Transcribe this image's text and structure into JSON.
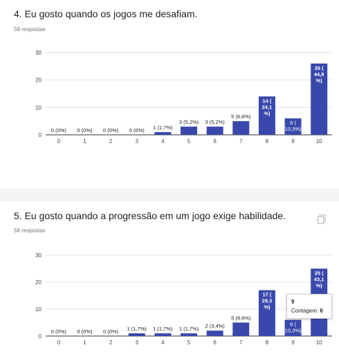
{
  "questions": [
    {
      "title": "4. Eu gosto quando os jogos me desafiam.",
      "responses": "58 respostas"
    },
    {
      "title": "5. Eu gosto quando a progressão em um jogo exige habilidade.",
      "responses": "58 respostas",
      "tooltip": {
        "category": "9",
        "count_label": "Contagem:",
        "count_value": "6"
      }
    }
  ],
  "colors": {
    "bar": "#3949ab",
    "grid": "#e0e0e0",
    "axis": "#333333",
    "label_dark": "#222222",
    "label_light": "#ffffff"
  },
  "icons": {
    "copy": "copy-icon"
  },
  "chart_data": [
    {
      "type": "bar",
      "categories": [
        "0",
        "1",
        "2",
        "3",
        "4",
        "5",
        "6",
        "7",
        "8",
        "9",
        "10"
      ],
      "values": [
        0,
        0,
        0,
        0,
        1,
        3,
        3,
        5,
        14,
        6,
        26
      ],
      "labels": [
        "0 (0%)",
        "0 (0%)",
        "0 (0%)",
        "0 (0%)",
        "1 (1,7%)",
        "3 (5,2%)",
        "3 (5,2%)",
        "5 (8,6%)",
        "14 (24,1%)",
        "6 (10,3%)",
        "26 (44,8%)"
      ],
      "yticks": [
        0,
        10,
        20,
        30
      ],
      "ylim": [
        0,
        30
      ],
      "grid": true
    },
    {
      "type": "bar",
      "categories": [
        "0",
        "1",
        "2",
        "3",
        "4",
        "5",
        "6",
        "7",
        "8",
        "9",
        "10"
      ],
      "values": [
        0,
        0,
        0,
        1,
        1,
        1,
        2,
        5,
        17,
        6,
        25
      ],
      "labels": [
        "0 (0%)",
        "0 (0%)",
        "0 (0%)",
        "1 (1,7%)",
        "1 (1,7%)",
        "1 (1,7%)",
        "2 (3,4%)",
        "5 (8,6%)",
        "17 (29,3%)",
        "6 (10,3%)",
        "25 (43,1%)"
      ],
      "yticks": [
        0,
        10,
        20,
        30
      ],
      "ylim": [
        0,
        30
      ],
      "grid": true
    }
  ]
}
